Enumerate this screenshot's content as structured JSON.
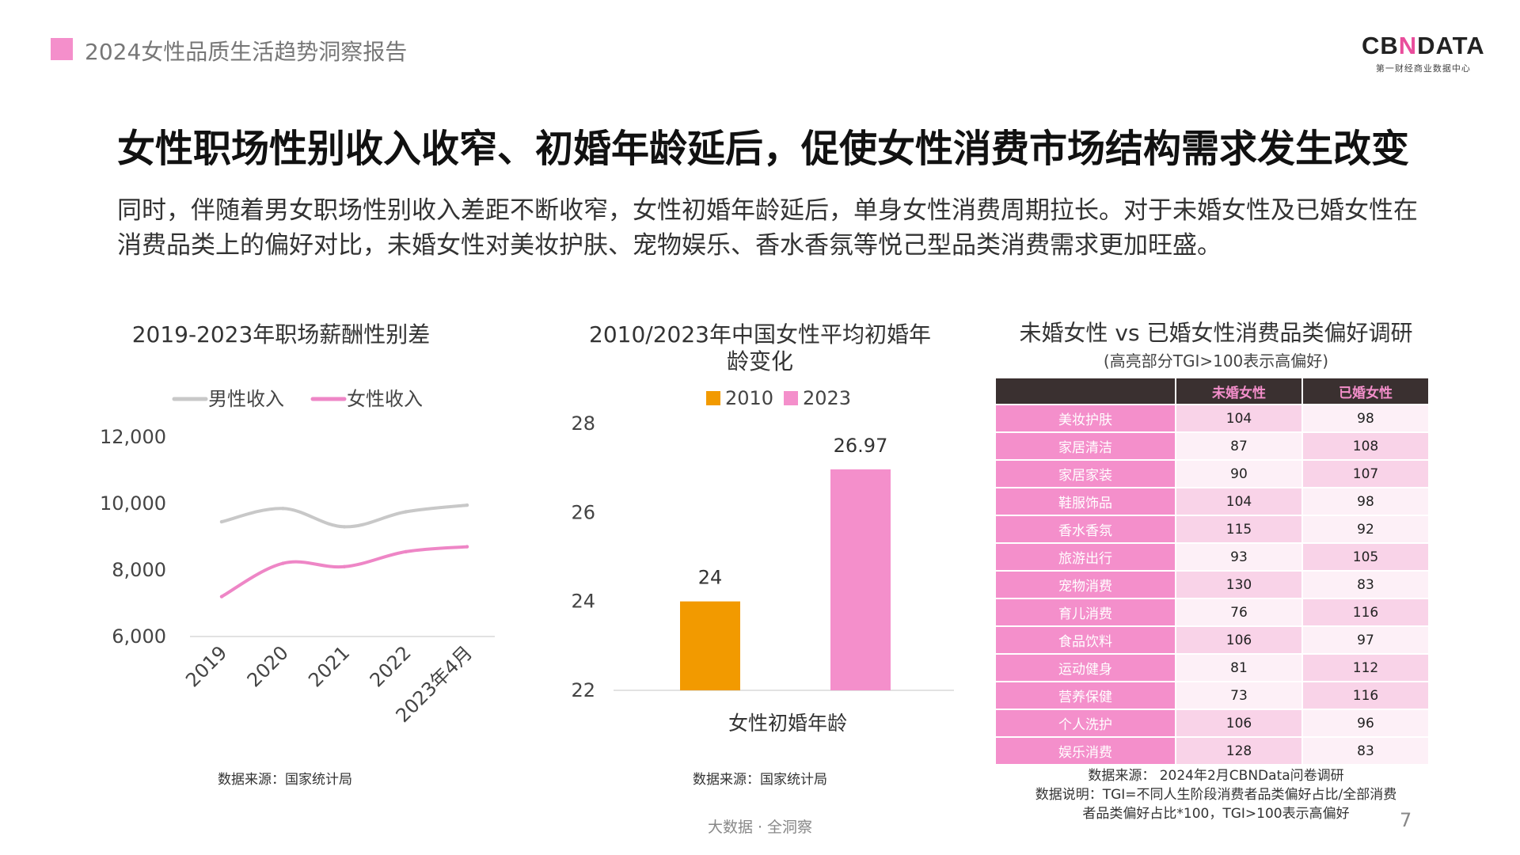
{
  "header": {
    "title": "2024女性品质生活趋势洞察报告"
  },
  "logo": {
    "brand_a": "CB",
    "brand_x": "N",
    "brand_b": "DATA",
    "subtitle": "第一财经商业数据中心"
  },
  "main_title": "女性职场性别收入收窄、初婚年龄延后，促使女性消费市场结构需求发生改变",
  "intro_text": "同时，伴随着男女职场性别收入差距不断收窄，女性初婚年龄延后，单身女性消费周期拉长。对于未婚女性及已婚女性在消费品类上的偏好对比，未婚女性对美妆护肤、宠物娱乐、香水香氛等悦己型品类消费需求更加旺盛。",
  "chart_data": [
    {
      "type": "line",
      "title": "2019-2023年职场薪酬性别差",
      "categories": [
        "2019",
        "2020",
        "2021",
        "2022",
        "2023年4月"
      ],
      "series": [
        {
          "name": "男性收入",
          "color": "#c8c8c8",
          "values": [
            9450,
            9850,
            9300,
            9750,
            9950
          ]
        },
        {
          "name": "女性收入",
          "color": "#ee86c6",
          "values": [
            7200,
            8200,
            8100,
            8550,
            8700
          ]
        }
      ],
      "yticks": [
        "6,000",
        "8,000",
        "10,000",
        "12,000"
      ],
      "ylim": [
        6000,
        12000
      ],
      "legend": "top",
      "source": "数据来源：国家统计局"
    },
    {
      "type": "bar",
      "title": "2010/2023年中国女性平均初婚年龄变化",
      "categories": [
        "女性初婚年龄"
      ],
      "series": [
        {
          "name": "2010",
          "color": "#f29a00",
          "values": [
            24
          ]
        },
        {
          "name": "2023",
          "color": "#f48fcb",
          "values": [
            26.97
          ]
        }
      ],
      "data_labels": [
        "24",
        "26.97"
      ],
      "yticks": [
        "22",
        "24",
        "26",
        "28"
      ],
      "ylim": [
        22,
        28
      ],
      "legend": "top",
      "source": "数据来源：国家统计局"
    },
    {
      "type": "table",
      "title": "未婚女性 vs 已婚女性消费品类偏好调研",
      "subtitle": "(高亮部分TGI>100表示高偏好)",
      "columns": [
        "",
        "未婚女性",
        "已婚女性"
      ],
      "rows": [
        {
          "category": "美妆护肤",
          "unmarried": 104,
          "married": 98
        },
        {
          "category": "家居清洁",
          "unmarried": 87,
          "married": 108
        },
        {
          "category": "家居家装",
          "unmarried": 90,
          "married": 107
        },
        {
          "category": "鞋服饰品",
          "unmarried": 104,
          "married": 98
        },
        {
          "category": "香水香氛",
          "unmarried": 115,
          "married": 92
        },
        {
          "category": "旅游出行",
          "unmarried": 93,
          "married": 105
        },
        {
          "category": "宠物消费",
          "unmarried": 130,
          "married": 83
        },
        {
          "category": "育儿消费",
          "unmarried": 76,
          "married": 116
        },
        {
          "category": "食品饮料",
          "unmarried": 106,
          "married": 97
        },
        {
          "category": "运动健身",
          "unmarried": 81,
          "married": 112
        },
        {
          "category": "营养保健",
          "unmarried": 73,
          "married": 116
        },
        {
          "category": "个人洗护",
          "unmarried": 106,
          "married": 96
        },
        {
          "category": "娱乐消费",
          "unmarried": 128,
          "married": 83
        }
      ],
      "highlight_color": "#f9d3e8",
      "plain_color": "#fdf0f7",
      "source": "数据来源： 2024年2月CBNData问卷调研",
      "note_line1": "数据说明：TGI=不同人生阶段消费者品类偏好占比/全部消费",
      "note_line2": "者品类偏好占比*100，TGI>100表示高偏好"
    }
  ],
  "footer": {
    "text": "大数据 · 全洞察",
    "page_number": "7"
  }
}
